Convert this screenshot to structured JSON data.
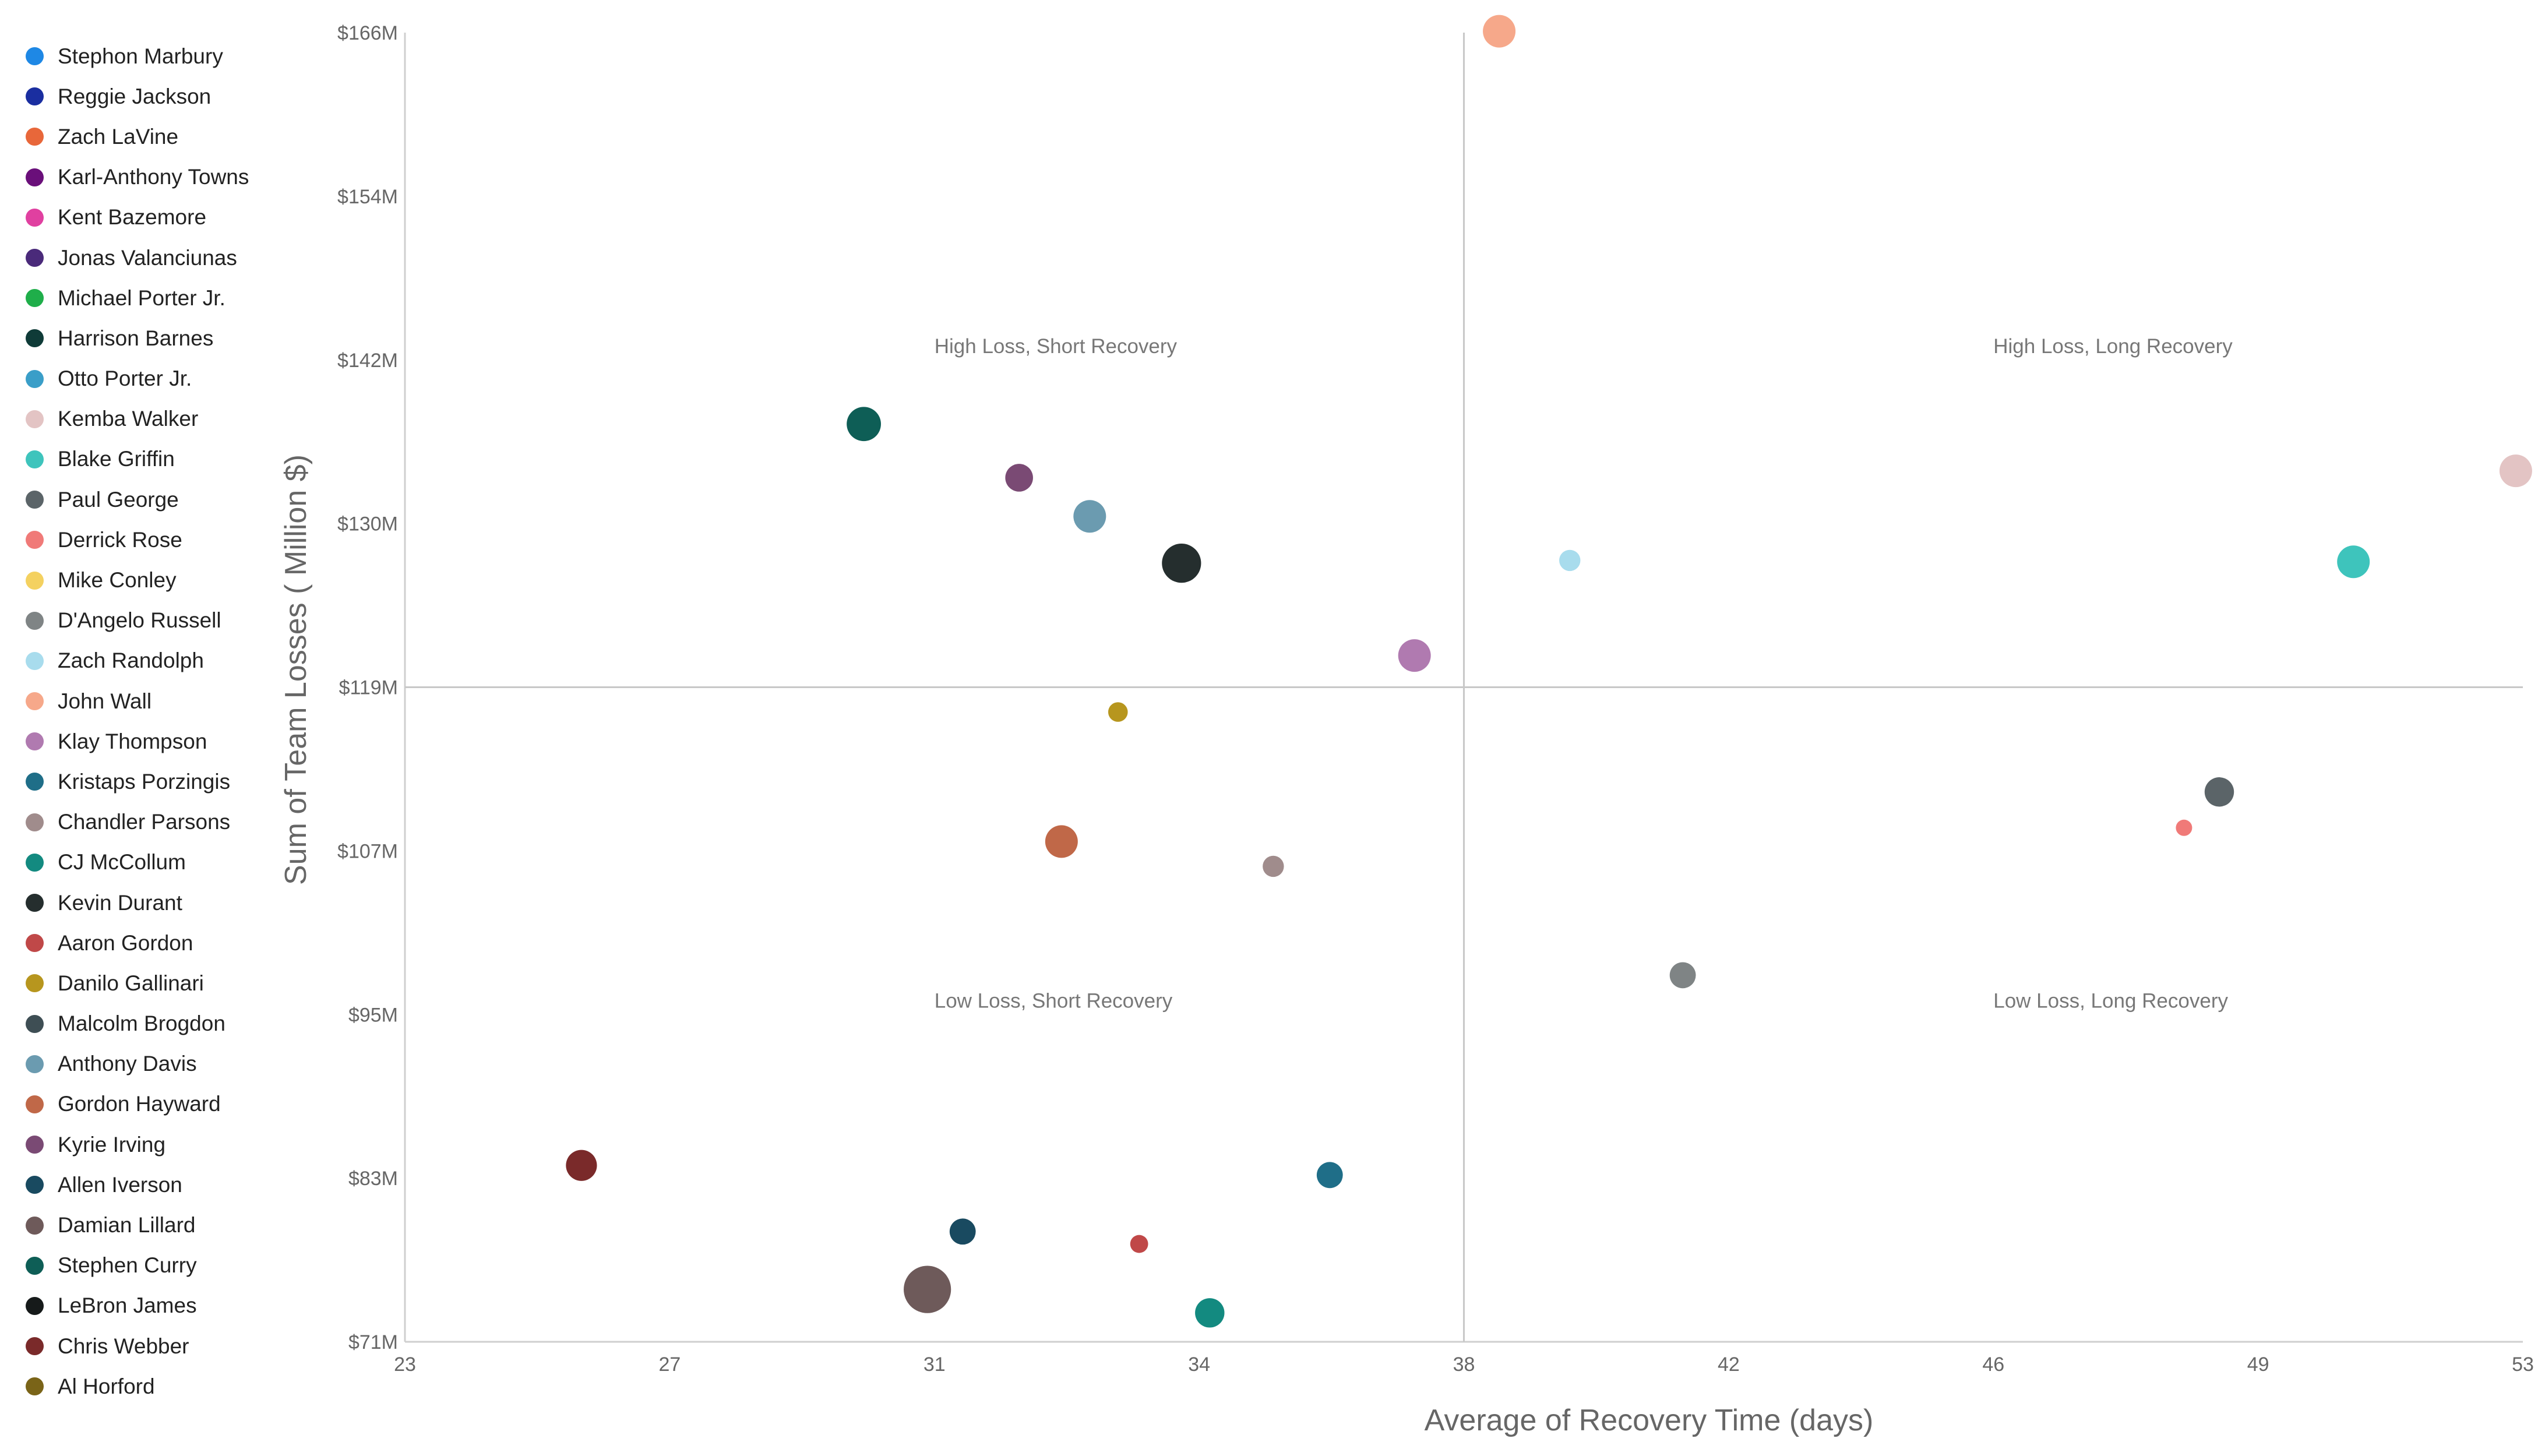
{
  "chart_data": {
    "type": "scatter",
    "title": "",
    "xlabel": "Average of Recovery Time (days)",
    "ylabel": "Sum of Team Losses ( Million $)",
    "xlim": [
      23,
      53
    ],
    "ylim": [
      71,
      166
    ],
    "x_ticks": [
      {
        "value": 23,
        "label": "23"
      },
      {
        "value": 26.75,
        "label": "27"
      },
      {
        "value": 30.5,
        "label": "31"
      },
      {
        "value": 34.25,
        "label": "34"
      },
      {
        "value": 38,
        "label": "38"
      },
      {
        "value": 41.75,
        "label": "42"
      },
      {
        "value": 45.5,
        "label": "46"
      },
      {
        "value": 49.25,
        "label": "49"
      },
      {
        "value": 53,
        "label": "53"
      }
    ],
    "y_ticks": [
      {
        "value": 71,
        "label": "$71M"
      },
      {
        "value": 82.875,
        "label": "$83M"
      },
      {
        "value": 94.75,
        "label": "$95M"
      },
      {
        "value": 106.625,
        "label": "$107M"
      },
      {
        "value": 118.5,
        "label": "$119M"
      },
      {
        "value": 130.375,
        "label": "$130M"
      },
      {
        "value": 142.25,
        "label": "$142M"
      },
      {
        "value": 154.125,
        "label": "$154M"
      },
      {
        "value": 166,
        "label": "$166M"
      }
    ],
    "reference_lines": {
      "x": 38,
      "y": 118.5
    },
    "quadrant_labels": [
      {
        "text": "High Loss, Short Recovery",
        "x": 30.5,
        "y": 142.25
      },
      {
        "text": "High Loss, Long Recovery",
        "x": 45.5,
        "y": 142.25
      },
      {
        "text": "Low Loss, Short Recovery",
        "x": 30.5,
        "y": 94.75
      },
      {
        "text": "Low Loss, Long Recovery",
        "x": 45.5,
        "y": 94.75
      }
    ],
    "legend_position": "left",
    "grid": false,
    "series": [
      {
        "name": "Stephon Marbury",
        "color": "#1e88e5"
      },
      {
        "name": "Reggie Jackson",
        "color": "#1a2ea0"
      },
      {
        "name": "Zach LaVine",
        "color": "#e8673a"
      },
      {
        "name": "Karl-Anthony Towns",
        "color": "#6a0f7a"
      },
      {
        "name": "Kent Bazemore",
        "color": "#e040a0"
      },
      {
        "name": "Jonas Valanciunas",
        "color": "#4a2a7a"
      },
      {
        "name": "Michael Porter Jr.",
        "color": "#1fae4a"
      },
      {
        "name": "Harrison Barnes",
        "color": "#0f3b38"
      },
      {
        "name": "Otto Porter Jr.",
        "color": "#3a9ec8"
      },
      {
        "name": "Kemba Walker",
        "color": "#e3c4c4",
        "x": 52.9,
        "y": 134.2,
        "size": 1.0
      },
      {
        "name": "Blake Griffin",
        "color": "#3ec4bc",
        "x": 50.6,
        "y": 127.6,
        "size": 1.0
      },
      {
        "name": "Paul George",
        "color": "#5b6468",
        "x": 48.7,
        "y": 110.9,
        "size": 0.9
      },
      {
        "name": "Derrick Rose",
        "color": "#f07a78",
        "x": 48.2,
        "y": 108.3,
        "size": 0.5
      },
      {
        "name": "Mike Conley",
        "color": "#f4d160"
      },
      {
        "name": "D'Angelo Russell",
        "color": "#7f8485",
        "x": 41.1,
        "y": 97.6,
        "size": 0.8
      },
      {
        "name": "Zach Randolph",
        "color": "#a8dced",
        "x": 39.5,
        "y": 127.7,
        "size": 0.65
      },
      {
        "name": "John Wall",
        "color": "#f6a88a",
        "x": 38.5,
        "y": 166.1,
        "size": 1.0
      },
      {
        "name": "Klay Thompson",
        "color": "#b07ab0",
        "x": 37.3,
        "y": 120.8,
        "size": 1.0
      },
      {
        "name": "Kristaps Porzingis",
        "color": "#1f6e88",
        "x": 36.1,
        "y": 83.1,
        "size": 0.8
      },
      {
        "name": "Chandler Parsons",
        "color": "#a08c8c",
        "x": 35.3,
        "y": 105.5,
        "size": 0.65
      },
      {
        "name": "CJ McCollum",
        "color": "#138a80",
        "x": 34.4,
        "y": 73.1,
        "size": 0.9
      },
      {
        "name": "Kevin Durant",
        "color": "#252e2e",
        "x": 34.0,
        "y": 127.5,
        "size": 1.2
      },
      {
        "name": "Aaron Gordon",
        "color": "#c04848",
        "x": 33.4,
        "y": 78.1,
        "size": 0.55
      },
      {
        "name": "Danilo Gallinari",
        "color": "#b7961e",
        "x": 33.1,
        "y": 116.7,
        "size": 0.6
      },
      {
        "name": "Malcolm Brogdon",
        "color": "#3e4e54"
      },
      {
        "name": "Anthony Davis",
        "color": "#6b9bb0",
        "x": 32.7,
        "y": 130.9,
        "size": 1.0
      },
      {
        "name": "Gordon Hayward",
        "color": "#c06848",
        "x": 32.3,
        "y": 107.3,
        "size": 1.0
      },
      {
        "name": "Kyrie Irving",
        "color": "#7a4a74",
        "x": 31.7,
        "y": 133.7,
        "size": 0.85
      },
      {
        "name": "Allen Iverson",
        "color": "#194a60",
        "x": 30.9,
        "y": 79.0,
        "size": 0.8
      },
      {
        "name": "Damian Lillard",
        "color": "#6e5a5a",
        "x": 30.4,
        "y": 74.8,
        "size": 1.45
      },
      {
        "name": "Stephen Curry",
        "color": "#0e5e56",
        "x": 29.5,
        "y": 137.6,
        "size": 1.05
      },
      {
        "name": "LeBron James",
        "color": "#161a1a"
      },
      {
        "name": "Chris Webber",
        "color": "#7a2a2a",
        "x": 25.5,
        "y": 83.8,
        "size": 0.95
      },
      {
        "name": "Al Horford",
        "color": "#7a6418"
      }
    ]
  }
}
